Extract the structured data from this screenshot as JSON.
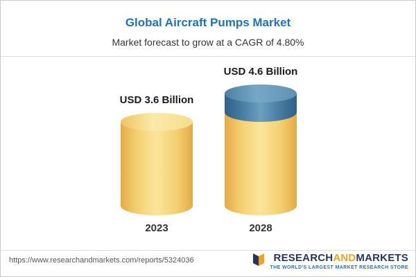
{
  "header": {
    "title": "Global Aircraft Pumps Market",
    "subtitle": "Market forecast to grow at a CAGR of 4.80%"
  },
  "chart_data": {
    "type": "bar",
    "title": "Global Aircraft Pumps Market",
    "subtitle": "Market forecast to grow at a CAGR of 4.80%",
    "cagr": "4.80%",
    "categories": [
      "2023",
      "2028"
    ],
    "values": [
      3.6,
      4.6
    ],
    "value_labels": [
      "USD 3.6 Billion",
      "USD 4.6 Billion"
    ],
    "unit": "USD Billion",
    "ylim": [
      0,
      5
    ],
    "legend": "none",
    "grid": "off",
    "colors": {
      "base_bar": "#F4CF71",
      "growth_segment": "#4A7DA3"
    }
  },
  "footer": {
    "url": "https://www.researchandmarkets.com/reports/5324036",
    "logo": {
      "part1": "RESEARCH",
      "part2": "AND",
      "part3": "MARKETS",
      "tagline": "THE WORLD'S LARGEST MARKET RESEARCH STORE"
    }
  }
}
